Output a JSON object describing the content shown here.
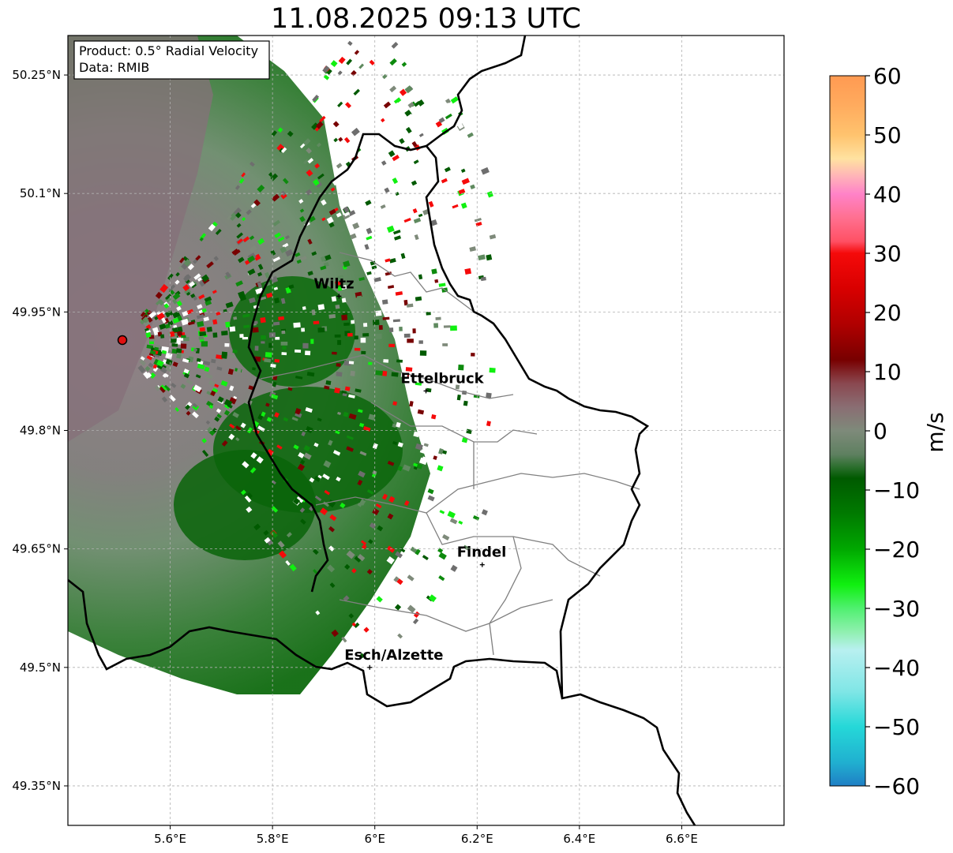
{
  "title": "11.08.2025 09:13 UTC",
  "info_box": {
    "product": "Product: 0.5° Radial Velocity",
    "data": "Data: RMIB"
  },
  "axes": {
    "lon_ticks": [
      "5.6°E",
      "5.8°E",
      "6°E",
      "6.2°E",
      "6.4°E",
      "6.6°E"
    ],
    "lat_ticks": [
      "50.25°N",
      "50.1°N",
      "49.95°N",
      "49.8°N",
      "49.65°N",
      "49.5°N",
      "49.35°N"
    ],
    "lon_range": [
      5.4,
      6.8
    ],
    "lat_range": [
      49.3,
      50.3
    ],
    "grid": true
  },
  "cities": [
    {
      "name": "Wiltz",
      "lon": 5.93,
      "lat": 49.97
    },
    {
      "name": "Ettelbruck",
      "lon": 6.1,
      "lat": 49.85
    },
    {
      "name": "Findel",
      "lon": 6.21,
      "lat": 49.63
    },
    {
      "name": "Esch/Alzette",
      "lon": 5.99,
      "lat": 49.5
    }
  ],
  "radar_site": {
    "lon": 5.5,
    "lat": 49.92
  },
  "colorbar": {
    "label": "m/s",
    "min": -60,
    "max": 60,
    "ticks": [
      "60",
      "50",
      "40",
      "30",
      "20",
      "10",
      "0",
      "−10",
      "−20",
      "−30",
      "−40",
      "−50",
      "−60"
    ],
    "colors": {
      "orange": "#ff9a52",
      "peach": "#ffc36e",
      "pink": "#ff82c8",
      "red": "#f50a0a",
      "darkred": "#780000",
      "mauve": "#8a6e73",
      "gray_green": "#7e8a7a",
      "dark_green": "#005a00",
      "bright_green": "#10f010",
      "cyan": "#25d8d8",
      "blue": "#1f7fc5"
    }
  }
}
